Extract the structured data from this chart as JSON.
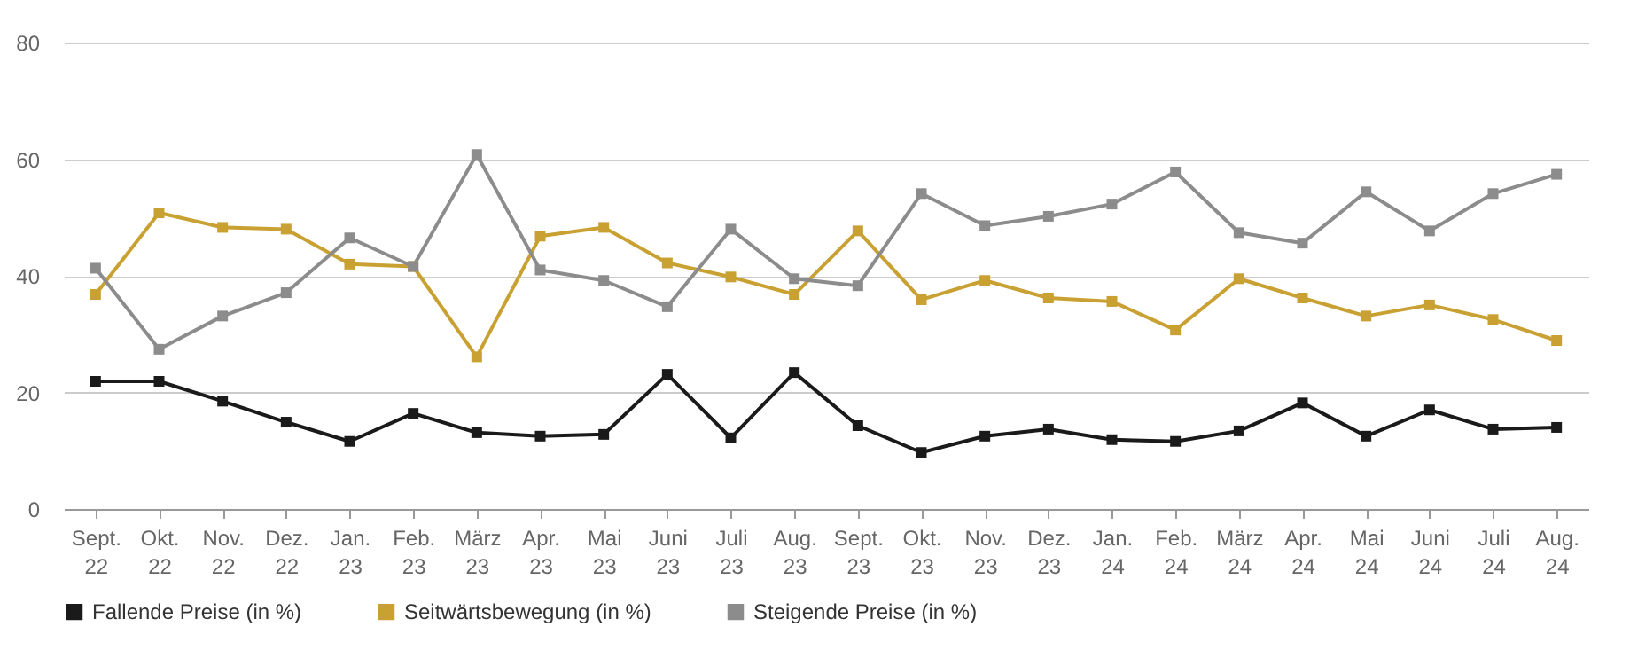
{
  "chart_data": {
    "type": "line",
    "categories": [
      "Sept. 22",
      "Okt. 22",
      "Nov. 22",
      "Dez. 22",
      "Jan. 23",
      "Feb. 23",
      "März 23",
      "Apr. 23",
      "Mai 23",
      "Juni 23",
      "Juli 23",
      "Aug. 23",
      "Sept. 23",
      "Okt. 23",
      "Nov. 23",
      "Dez. 23",
      "Jan. 24",
      "Feb. 24",
      "März 24",
      "Apr. 24",
      "Mai 24",
      "Juni 24",
      "Juli 24",
      "Aug. 24"
    ],
    "series": [
      {
        "name": "Fallende Preise (in %)",
        "color": "#1a1a1a",
        "values": [
          21.9,
          21.9,
          18.5,
          14.9,
          11.6,
          16.4,
          13.1,
          12.5,
          12.8,
          23.1,
          12.2,
          23.4,
          14.3,
          9.7,
          12.5,
          13.7,
          11.9,
          11.6,
          13.4,
          18.2,
          12.5,
          17.0,
          13.7,
          14.0
        ]
      },
      {
        "name": "Seitwärtsbewegung (in %)",
        "color": "#c9a032",
        "values": [
          36.8,
          50.8,
          48.3,
          48.0,
          42.0,
          41.6,
          26.1,
          46.8,
          48.3,
          42.2,
          39.8,
          36.8,
          47.7,
          35.9,
          39.2,
          36.2,
          35.6,
          30.7,
          39.5,
          36.2,
          33.1,
          35.0,
          32.5,
          28.9
        ]
      },
      {
        "name": "Steigende Preise (in %)",
        "color": "#8c8c8c",
        "values": [
          41.3,
          27.4,
          33.1,
          37.1,
          46.5,
          41.6,
          60.8,
          41.0,
          39.2,
          34.7,
          48.0,
          39.5,
          38.3,
          54.1,
          48.6,
          50.2,
          52.3,
          57.8,
          47.4,
          45.6,
          54.4,
          47.7,
          54.1,
          57.4
        ]
      }
    ],
    "ylim": [
      0,
      80
    ],
    "yticks": [
      0,
      20,
      40,
      60,
      80
    ],
    "grid": "y",
    "legend": "bottom",
    "marker": "square",
    "line_style": "solid"
  }
}
